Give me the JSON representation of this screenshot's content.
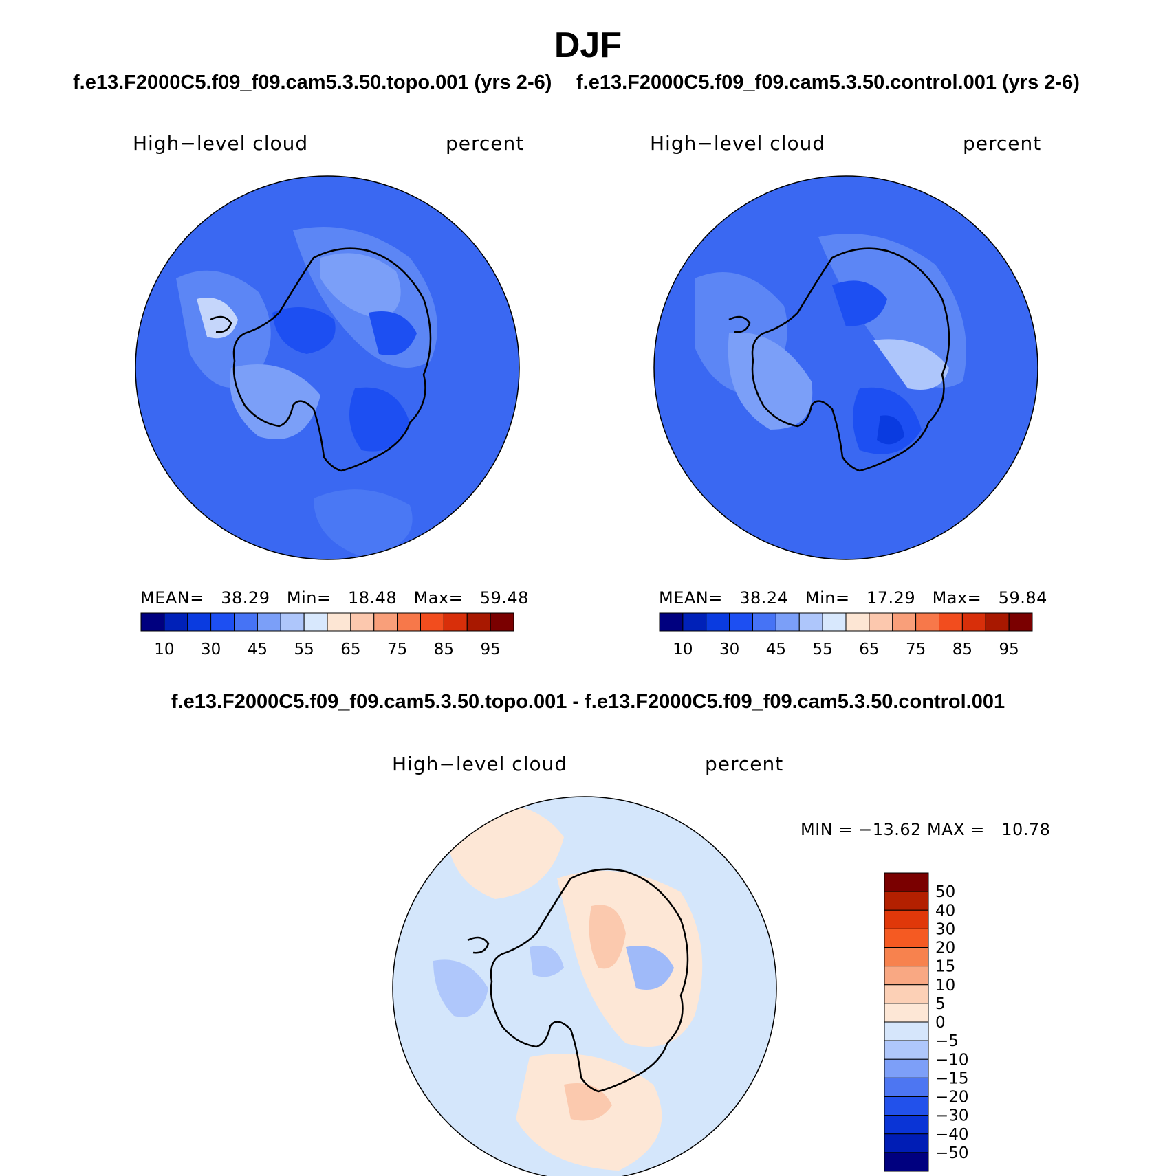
{
  "figure": {
    "title": "DJF",
    "panels": [
      {
        "case": "f.e13.F2000C5.f09_f09.cam5.3.50.topo.001 (yrs 2-6)",
        "variable": "High−level cloud",
        "units": "percent",
        "stats": {
          "mean_label": "MEAN=",
          "mean": "38.29",
          "min_label": "Min=",
          "min": "18.48",
          "max_label": "Max=",
          "max": "59.48"
        },
        "base_color": "#3a68f2"
      },
      {
        "case": "f.e13.F2000C5.f09_f09.cam5.3.50.control.001 (yrs 2-6)",
        "variable": "High−level cloud",
        "units": "percent",
        "stats": {
          "mean_label": "MEAN=",
          "mean": "38.24",
          "min_label": "Min=",
          "min": "17.29",
          "max_label": "Max=",
          "max": "59.84"
        },
        "base_color": "#3a68f2"
      }
    ],
    "difference": {
      "title": "f.e13.F2000C5.f09_f09.cam5.3.50.topo.001 - f.e13.F2000C5.f09_f09.cam5.3.50.control.001",
      "variable": "High−level cloud",
      "units": "percent",
      "minmax": "MIN = −13.62 MAX =   10.78",
      "base_color": "#d4e6fb"
    },
    "colorbar_main": {
      "colors": [
        "#00007f",
        "#0021b8",
        "#0a3be0",
        "#1d4ff2",
        "#4673f5",
        "#7b9ff8",
        "#aec6fb",
        "#d8e8fd",
        "#fde6d4",
        "#fcc8ae",
        "#f99f7a",
        "#f7784a",
        "#f24d1e",
        "#d82f0a",
        "#a81800",
        "#7a0000"
      ],
      "labels": [
        "10",
        "30",
        "45",
        "55",
        "65",
        "75",
        "85",
        "95"
      ]
    },
    "colorbar_diff": {
      "colors": [
        "#7a0000",
        "#b32000",
        "#e0380a",
        "#f55a22",
        "#f7824e",
        "#f9a883",
        "#fcd0b6",
        "#fde7d6",
        "#d6e6fb",
        "#afc7fb",
        "#7d9ff8",
        "#4d76f2",
        "#2251eb",
        "#0a34d6",
        "#001db5",
        "#00007f"
      ],
      "labels": [
        "50",
        "40",
        "30",
        "20",
        "15",
        "10",
        "5",
        "0",
        "−5",
        "−10",
        "−15",
        "−20",
        "−30",
        "−40",
        "−50"
      ]
    }
  }
}
